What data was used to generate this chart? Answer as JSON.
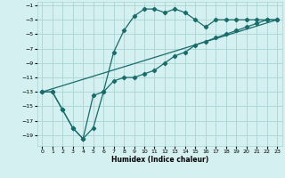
{
  "xlabel": "Humidex (Indice chaleur)",
  "bg_color": "#d4f0f0",
  "grid_color": "#aad4d4",
  "line_color": "#1a6b6b",
  "xlim": [
    -0.5,
    23.5
  ],
  "ylim": [
    -20.5,
    -0.5
  ],
  "xticks": [
    0,
    1,
    2,
    3,
    4,
    5,
    6,
    7,
    8,
    9,
    10,
    11,
    12,
    13,
    14,
    15,
    16,
    17,
    18,
    19,
    20,
    21,
    22,
    23
  ],
  "yticks": [
    -19,
    -17,
    -15,
    -13,
    -11,
    -9,
    -7,
    -5,
    -3,
    -1
  ],
  "line1_x": [
    0,
    1,
    2,
    3,
    4,
    5,
    6,
    7,
    8,
    9,
    10,
    11,
    12,
    13,
    14,
    15,
    16,
    17,
    18,
    19,
    20,
    21,
    22,
    23
  ],
  "line1_y": [
    -13,
    -13,
    -15.5,
    -18,
    -19.5,
    -18,
    -13,
    -7.5,
    -4.5,
    -2.5,
    -1.5,
    -1.5,
    -2,
    -1.5,
    -2,
    -3,
    -4,
    -3,
    -3,
    -3,
    -3,
    -3,
    -3,
    -3
  ],
  "line2_x": [
    0,
    1,
    2,
    3,
    4,
    5,
    6,
    7,
    8,
    9,
    10,
    11,
    12,
    13,
    14,
    15,
    16,
    17,
    18,
    19,
    20,
    21,
    22,
    23
  ],
  "line2_y": [
    -13,
    -13,
    -15.5,
    -18,
    -19.5,
    -13.5,
    -13,
    -11.5,
    -11,
    -11,
    -10.5,
    -10,
    -9,
    -8,
    -7.5,
    -6.5,
    -6,
    -5.5,
    -5,
    -4.5,
    -4,
    -3.5,
    -3,
    -3
  ],
  "line3_x": [
    0,
    23
  ],
  "line3_y": [
    -13,
    -3
  ]
}
